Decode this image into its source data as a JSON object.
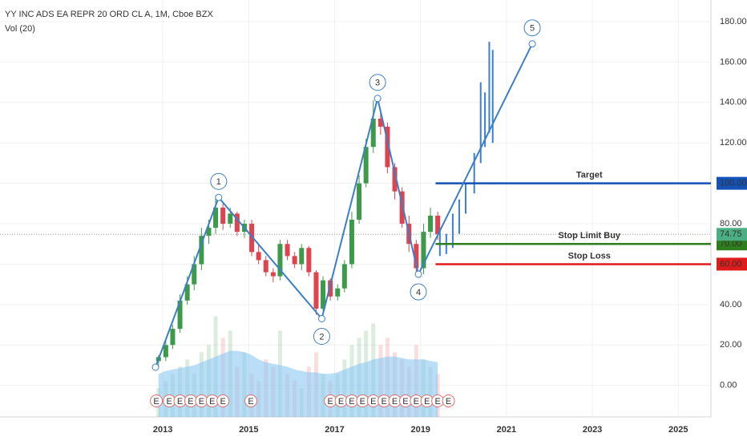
{
  "chart_data": {
    "type": "candlestick",
    "title": "YY INC ADS EA REPR 20 ORD CL A, 1M, Cboe BZX",
    "volume_title": "Vol (20)",
    "xlim": [
      2009.21,
      2025.76
    ],
    "xticks": [
      2013,
      2015,
      2017,
      2019,
      2021,
      2023,
      2025
    ],
    "ylim": [
      -15.6,
      190.7
    ],
    "yticks": [
      {
        "value": 0,
        "label": "0.00"
      },
      {
        "value": 20,
        "label": "20.00"
      },
      {
        "value": 40,
        "label": "40.00"
      },
      {
        "value": 60,
        "label": "60.00"
      },
      {
        "value": 80,
        "label": "80.00"
      },
      {
        "value": 100,
        "label": "100.00"
      },
      {
        "value": 120,
        "label": "120.00"
      },
      {
        "value": 140,
        "label": "140.00"
      },
      {
        "value": 160,
        "label": "160.00"
      },
      {
        "value": 180,
        "label": "180.00"
      }
    ],
    "grid": true,
    "up_color": "#3d9a4a",
    "down_color": "#e0424e",
    "x": [
      2012.9,
      2013.07,
      2013.23,
      2013.4,
      2013.57,
      2013.73,
      2013.9,
      2014.07,
      2014.23,
      2014.4,
      2014.57,
      2014.73,
      2014.9,
      2015.07,
      2015.23,
      2015.4,
      2015.57,
      2015.73,
      2015.9,
      2016.07,
      2016.23,
      2016.4,
      2016.57,
      2016.73,
      2016.9,
      2017.07,
      2017.23,
      2017.4,
      2017.57,
      2017.73,
      2017.9,
      2018.07,
      2018.23,
      2018.4,
      2018.57,
      2018.73,
      2018.9,
      2019.07,
      2019.23,
      2019.4
    ],
    "open": [
      12,
      14,
      20,
      28,
      42,
      50,
      60,
      74,
      78,
      88,
      80,
      85,
      76,
      80,
      66,
      62,
      56,
      54,
      70,
      64,
      60,
      68,
      56,
      38,
      52,
      44,
      48,
      60,
      82,
      100,
      118,
      132,
      128,
      108,
      96,
      80,
      70,
      58,
      76,
      84
    ],
    "high": [
      15,
      22,
      30,
      45,
      54,
      64,
      78,
      82,
      94,
      90,
      88,
      86,
      82,
      82,
      70,
      64,
      58,
      72,
      72,
      66,
      70,
      69,
      57,
      54,
      53,
      50,
      62,
      86,
      104,
      122,
      141,
      135,
      130,
      110,
      98,
      84,
      72,
      80,
      88,
      86
    ],
    "low": [
      9,
      12,
      18,
      26,
      40,
      47,
      57,
      70,
      75,
      77,
      78,
      74,
      73,
      64,
      60,
      54,
      51,
      52,
      62,
      58,
      57,
      54,
      35,
      37,
      42,
      42,
      46,
      58,
      80,
      98,
      115,
      124,
      105,
      92,
      78,
      66,
      55,
      55,
      73,
      72
    ],
    "close": [
      14,
      20,
      28,
      42,
      50,
      60,
      74,
      78,
      88,
      80,
      85,
      76,
      80,
      66,
      62,
      56,
      54,
      70,
      64,
      60,
      68,
      56,
      38,
      52,
      44,
      48,
      60,
      82,
      100,
      118,
      132,
      128,
      108,
      96,
      80,
      70,
      58,
      76,
      84,
      74.75
    ],
    "volume_ylim": [
      0,
      290
    ],
    "volume": [
      20,
      25,
      30,
      35,
      40,
      30,
      45,
      50,
      70,
      55,
      60,
      35,
      45,
      30,
      25,
      40,
      35,
      60,
      30,
      25,
      20,
      35,
      45,
      30,
      25,
      30,
      40,
      50,
      55,
      60,
      65,
      50,
      55,
      45,
      40,
      35,
      50,
      40,
      35,
      30
    ],
    "volume_ma": [
      30,
      32,
      33,
      34,
      35,
      36,
      38,
      40,
      42,
      44,
      46,
      46,
      45,
      43,
      40,
      38,
      37,
      36,
      35,
      33,
      32,
      31,
      31,
      30,
      30,
      31,
      33,
      35,
      37,
      38,
      40,
      41,
      42,
      42,
      41,
      40,
      40,
      40,
      39,
      38
    ],
    "volume_ma_color": "#8cc8f2",
    "earnings_label": "E",
    "earnings_x": [
      2012.85,
      2013.15,
      2013.4,
      2013.65,
      2013.9,
      2014.15,
      2014.4,
      2015.05,
      2016.9,
      2017.15,
      2017.4,
      2017.65,
      2017.9,
      2018.15,
      2018.4,
      2018.65,
      2018.9,
      2019.15,
      2019.4,
      2019.65
    ],
    "projection_color": "#3a7fd5",
    "projection_x": [
      2019.45,
      2019.6,
      2019.75,
      2019.9,
      2020.05,
      2020.25,
      2020.4,
      2020.5,
      2020.6,
      2020.68
    ],
    "projection_high": [
      78,
      75,
      85,
      92,
      100,
      115,
      150,
      145,
      170,
      166
    ],
    "projection_low": [
      64,
      65,
      68,
      75,
      85,
      95,
      110,
      118,
      125,
      120
    ],
    "wave_color": "#3c7fc4",
    "wave_x": [
      2012.83,
      2014.3,
      2016.7,
      2018.0,
      2018.95,
      2021.6
    ],
    "wave_y": [
      9,
      93,
      33,
      142,
      55,
      169
    ],
    "wave_labels": [
      null,
      "1",
      "2",
      "3",
      "4",
      "5"
    ],
    "levels": [
      {
        "value": 100,
        "label": "100.00",
        "text": "Target",
        "color": "#1452b8",
        "x0": 2019.35
      },
      {
        "value": 70,
        "label": "70.00",
        "text": "Stop Limit Buy",
        "color": "#2e7d1e",
        "x0": 2019.35
      },
      {
        "value": 60,
        "label": "60.00",
        "text": "Stop Loss",
        "color": "#e01b1b",
        "x0": 2019.35
      }
    ],
    "last_price": {
      "value": 74.75,
      "label": "74.75",
      "color": "#4caf84"
    }
  }
}
